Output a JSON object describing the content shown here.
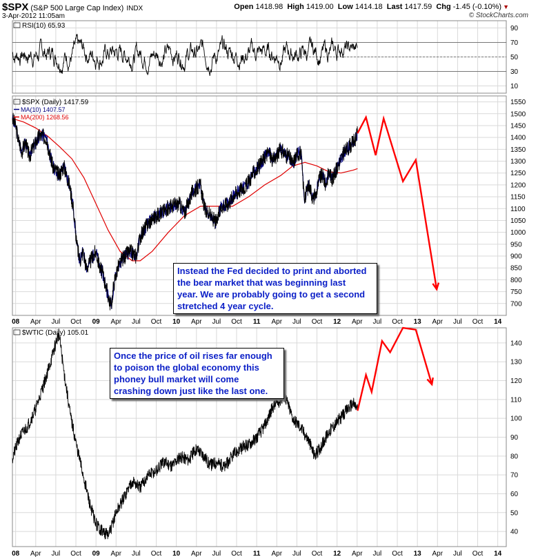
{
  "header": {
    "symbol": "$SPX",
    "name": "(S&P 500 Large Cap Index)",
    "exchange": "INDX",
    "date": "3-Apr-2012 11:05am",
    "open_label": "Open",
    "open": "1418.98",
    "high_label": "High",
    "high": "1419.00",
    "low_label": "Low",
    "low": "1414.18",
    "last_label": "Last",
    "last": "1417.59",
    "chg_label": "Chg",
    "chg": "-1.45 (-0.10%)",
    "brand": "© StockCharts.com"
  },
  "colors": {
    "price": "#000000",
    "ma10": "#000080",
    "ma200": "#e00000",
    "projection": "#ff0000",
    "grid": "#d9d9d9",
    "annotation_text": "#0b1fc7"
  },
  "chart_data": [
    {
      "type": "line",
      "title": "RSI(10) 65.93",
      "series": [
        {
          "name": "RSI(10)",
          "last": 65.93
        }
      ],
      "y_ticks": [
        10,
        30,
        50,
        70,
        90
      ],
      "reference_lines": [
        30,
        50,
        70
      ],
      "ylim": [
        0,
        100
      ]
    },
    {
      "type": "line",
      "title": "$SPX (Daily) 1417.59",
      "legend": [
        "MA(10) 1407.57",
        "MA(200) 1268.56"
      ],
      "y_ticks": [
        700,
        750,
        800,
        850,
        900,
        950,
        1000,
        1050,
        1100,
        1150,
        1200,
        1250,
        1300,
        1350,
        1400,
        1450,
        1500,
        1550
      ],
      "ylim": [
        650,
        1575
      ],
      "x_ticks": [
        "08",
        "Apr",
        "Jul",
        "Oct",
        "09",
        "Apr",
        "Jul",
        "Oct",
        "10",
        "Apr",
        "Jul",
        "Oct",
        "11",
        "Apr",
        "Jul",
        "Oct",
        "12",
        "Apr",
        "Jul",
        "Oct",
        "13",
        "Apr",
        "Jul",
        "Oct",
        "14"
      ],
      "series": [
        {
          "name": "SPX",
          "x": [
            2007.96,
            2008.0,
            2008.03,
            2008.08,
            2008.12,
            2008.17,
            2008.22,
            2008.3,
            2008.38,
            2008.46,
            2008.54,
            2008.6,
            2008.67,
            2008.72,
            2008.76,
            2008.8,
            2008.84,
            2008.88,
            2008.92,
            2008.96,
            2009.0,
            2009.04,
            2009.08,
            2009.12,
            2009.16,
            2009.19,
            2009.22,
            2009.27,
            2009.33,
            2009.42,
            2009.5,
            2009.55,
            2009.63,
            2009.71,
            2009.8,
            2009.88,
            2009.96,
            2010.04,
            2010.1,
            2010.2,
            2010.3,
            2010.35,
            2010.42,
            2010.5,
            2010.56,
            2010.64,
            2010.72,
            2010.8,
            2010.88,
            2010.96,
            2011.04,
            2011.1,
            2011.15,
            2011.2,
            2011.3,
            2011.35,
            2011.4,
            2011.45,
            2011.5,
            2011.55,
            2011.58,
            2011.6,
            2011.62,
            2011.66,
            2011.7,
            2011.74,
            2011.78,
            2011.82,
            2011.86,
            2011.9,
            2011.94,
            2012.0,
            2012.06,
            2012.12,
            2012.18,
            2012.24,
            2012.255
          ],
          "values": [
            1480,
            1450,
            1395,
            1340,
            1380,
            1320,
            1360,
            1410,
            1400,
            1280,
            1240,
            1280,
            1200,
            1100,
            950,
            880,
            920,
            850,
            870,
            900,
            920,
            860,
            830,
            780,
            720,
            690,
            780,
            850,
            890,
            920,
            900,
            980,
            1030,
            1060,
            1080,
            1100,
            1115,
            1120,
            1080,
            1170,
            1200,
            1100,
            1070,
            1040,
            1110,
            1120,
            1160,
            1180,
            1200,
            1250,
            1280,
            1320,
            1340,
            1300,
            1350,
            1330,
            1320,
            1290,
            1330,
            1340,
            1200,
            1130,
            1180,
            1200,
            1140,
            1160,
            1230,
            1240,
            1200,
            1260,
            1220,
            1270,
            1320,
            1350,
            1370,
            1400,
            1417.59
          ]
        },
        {
          "name": "MA(200)",
          "x": [
            2007.96,
            2008.1,
            2008.25,
            2008.4,
            2008.55,
            2008.7,
            2008.85,
            2009.0,
            2009.15,
            2009.3,
            2009.45,
            2009.55,
            2009.7,
            2009.9,
            2010.1,
            2010.3,
            2010.5,
            2010.7,
            2010.9,
            2011.1,
            2011.3,
            2011.45,
            2011.6,
            2011.75,
            2011.9,
            2012.05,
            2012.2,
            2012.255
          ],
          "values": [
            1480,
            1465,
            1440,
            1405,
            1360,
            1310,
            1230,
            1120,
            1010,
            920,
            880,
            880,
            920,
            1000,
            1070,
            1110,
            1110,
            1110,
            1150,
            1200,
            1240,
            1280,
            1295,
            1280,
            1255,
            1250,
            1262,
            1268.56
          ]
        },
        {
          "name": "Projection",
          "x": [
            2012.255,
            2012.36,
            2012.48,
            2012.58,
            2012.82,
            2012.98,
            2013.24
          ],
          "values": [
            1417.59,
            1485,
            1325,
            1480,
            1215,
            1305,
            760
          ]
        }
      ]
    },
    {
      "type": "line",
      "title": "$WTIC (Daily) 105.01",
      "y_ticks": [
        40,
        50,
        60,
        70,
        80,
        90,
        100,
        110,
        120,
        130,
        140
      ],
      "ylim": [
        32,
        148
      ],
      "x_ticks": [
        "08",
        "Apr",
        "Jul",
        "Oct",
        "09",
        "Apr",
        "Jul",
        "Oct",
        "10",
        "Apr",
        "Jul",
        "Oct",
        "11",
        "Apr",
        "Jul",
        "Oct",
        "12",
        "Apr",
        "Jul",
        "Oct",
        "13",
        "Apr",
        "Jul",
        "Oct",
        "14"
      ],
      "series": [
        {
          "name": "WTIC",
          "x": [
            2007.96,
            2008.05,
            2008.15,
            2008.25,
            2008.35,
            2008.45,
            2008.5,
            2008.54,
            2008.6,
            2008.68,
            2008.76,
            2008.84,
            2008.92,
            2009.0,
            2009.08,
            2009.16,
            2009.25,
            2009.35,
            2009.45,
            2009.55,
            2009.65,
            2009.75,
            2009.85,
            2009.95,
            2010.05,
            2010.15,
            2010.25,
            2010.35,
            2010.42,
            2010.5,
            2010.6,
            2010.7,
            2010.8,
            2010.9,
            2011.0,
            2011.1,
            2011.2,
            2011.3,
            2011.35,
            2011.45,
            2011.55,
            2011.65,
            2011.72,
            2011.8,
            2011.9,
            2012.0,
            2012.1,
            2012.15,
            2012.2,
            2012.255
          ],
          "values": [
            79,
            90,
            96,
            105,
            118,
            132,
            140,
            145,
            125,
            102,
            85,
            70,
            55,
            44,
            40,
            38,
            50,
            58,
            67,
            63,
            70,
            72,
            77,
            75,
            80,
            78,
            84,
            80,
            75,
            77,
            74,
            80,
            84,
            86,
            90,
            96,
            106,
            110,
            112,
            100,
            95,
            88,
            80,
            85,
            93,
            98,
            103,
            106,
            108,
            105.01
          ]
        },
        {
          "name": "Projection",
          "x": [
            2012.255,
            2012.36,
            2012.43,
            2012.56,
            2012.66,
            2012.82,
            2012.98,
            2013.18
          ],
          "values": [
            104,
            123,
            114,
            141,
            135,
            148,
            147,
            118
          ]
        }
      ]
    }
  ],
  "annotations": [
    {
      "text": "Instead the Fed decided to print and aborted\nthe bear market that was beginning last\nyear. We are probably going to get a second\nstretched 4 year cycle."
    },
    {
      "text": "Once the price of oil rises far enough\nto poison the global economy this\nphoney bull market will come\ncrashing down just like the last one."
    }
  ]
}
